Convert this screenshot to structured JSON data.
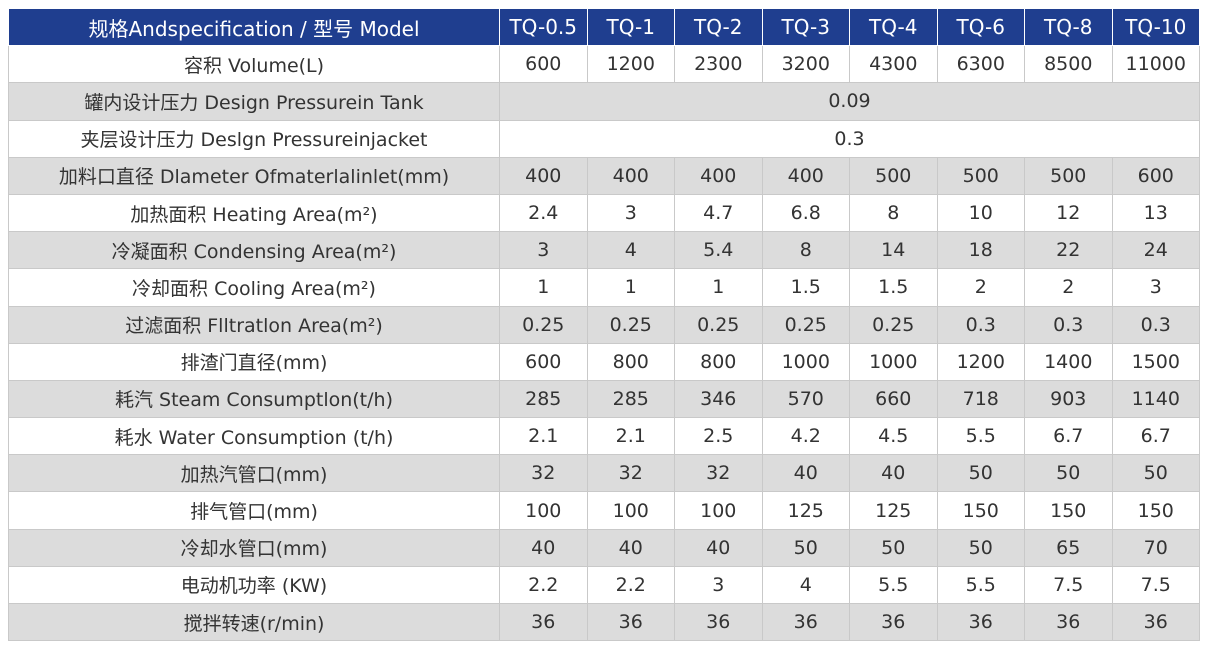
{
  "table": {
    "header": {
      "label": "规格Andspecification / 型号 Model",
      "models": [
        "TQ-0.5",
        "TQ-1",
        "TQ-2",
        "TQ-3",
        "TQ-4",
        "TQ-6",
        "TQ-8",
        "TQ-10"
      ]
    },
    "rows": [
      {
        "label": "容积 Volume(L)",
        "values": [
          "600",
          "1200",
          "2300",
          "3200",
          "4300",
          "6300",
          "8500",
          "11000"
        ]
      },
      {
        "label": "罐内设计压力 Design Pressurein Tank",
        "span": "0.09"
      },
      {
        "label": "夹层设计压力 Deslgn Pressureinjacket",
        "span": "0.3"
      },
      {
        "label": "加料口直径 Dlameter Ofmaterlalinlet(mm)",
        "values": [
          "400",
          "400",
          "400",
          "400",
          "500",
          "500",
          "500",
          "600"
        ]
      },
      {
        "label": "加热面积 Heating Area(m²)",
        "values": [
          "2.4",
          "3",
          "4.7",
          "6.8",
          "8",
          "10",
          "12",
          "13"
        ]
      },
      {
        "label": "冷凝面积 Condensing Area(m²)",
        "values": [
          "3",
          "4",
          "5.4",
          "8",
          "14",
          "18",
          "22",
          "24"
        ]
      },
      {
        "label": "冷却面积 Cooling Area(m²)",
        "values": [
          "1",
          "1",
          "1",
          "1.5",
          "1.5",
          "2",
          "2",
          "3"
        ]
      },
      {
        "label": "过滤面积 Flltratlon Area(m²)",
        "values": [
          "0.25",
          "0.25",
          "0.25",
          "0.25",
          "0.25",
          "0.3",
          "0.3",
          "0.3"
        ]
      },
      {
        "label": "排渣门直径(mm)",
        "values": [
          "600",
          "800",
          "800",
          "1000",
          "1000",
          "1200",
          "1400",
          "1500"
        ]
      },
      {
        "label": "耗汽 Steam Consumptlon(t/h)",
        "values": [
          "285",
          "285",
          "346",
          "570",
          "660",
          "718",
          "903",
          "1140"
        ]
      },
      {
        "label": "耗水 Water Consumption (t/h)",
        "values": [
          "2.1",
          "2.1",
          "2.5",
          "4.2",
          "4.5",
          "5.5",
          "6.7",
          "6.7"
        ]
      },
      {
        "label": "加热汽管口(mm)",
        "values": [
          "32",
          "32",
          "32",
          "40",
          "40",
          "50",
          "50",
          "50"
        ]
      },
      {
        "label": "排气管口(mm)",
        "values": [
          "100",
          "100",
          "100",
          "125",
          "125",
          "150",
          "150",
          "150"
        ]
      },
      {
        "label": "冷却水管口(mm)",
        "values": [
          "40",
          "40",
          "40",
          "50",
          "50",
          "50",
          "65",
          "70"
        ]
      },
      {
        "label": "电动机功率 (KW)",
        "values": [
          "2.2",
          "2.2",
          "3",
          "4",
          "5.5",
          "5.5",
          "7.5",
          "7.5"
        ]
      },
      {
        "label": "搅拌转速(r/min)",
        "values": [
          "36",
          "36",
          "36",
          "36",
          "36",
          "36",
          "36",
          "36"
        ]
      }
    ]
  }
}
